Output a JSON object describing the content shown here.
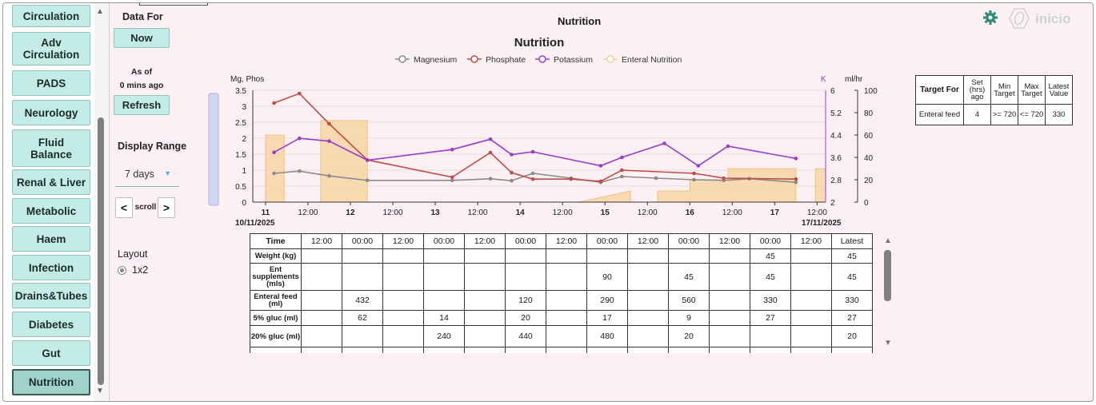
{
  "sidebar": {
    "items": [
      {
        "label": "Circulation"
      },
      {
        "label": "Adv Circulation"
      },
      {
        "label": "PADS"
      },
      {
        "label": "Neurology"
      },
      {
        "label": "Fluid Balance"
      },
      {
        "label": "Renal & Liver"
      },
      {
        "label": "Metabolic"
      },
      {
        "label": "Haem"
      },
      {
        "label": "Infection"
      },
      {
        "label": "Drains&Tubes"
      },
      {
        "label": "Diabetes"
      },
      {
        "label": "Gut"
      },
      {
        "label": "Nutrition"
      }
    ]
  },
  "controls": {
    "data_for_label": "Data For",
    "now_button": "Now",
    "as_of_label": "As of",
    "as_of_value": "0 mins ago",
    "refresh_button": "Refresh",
    "display_range_label": "Display Range",
    "display_range_value": "7 days",
    "scroll_prev": "<",
    "scroll_label": "scroll",
    "scroll_next": ">",
    "layout_label": "Layout",
    "layout_option": "1x2"
  },
  "header": {
    "page_title": "Nutrition",
    "logo_text": "inicio"
  },
  "colors": {
    "magnesium": "#8a8a8a",
    "phosphate": "#c24a4a",
    "potassium": "#9a3ad0",
    "enteral": "#f6d39b",
    "accent": "#2e8b7a"
  },
  "chart_data": {
    "type": "line",
    "title": "Nutrition",
    "legend": [
      "Magnesium",
      "Phosphate",
      "Potassium",
      "Enteral Nutrition"
    ],
    "axes": {
      "left_label": "Mg, Phos",
      "left_ticks": [
        "3.5",
        "3",
        "2.5",
        "2",
        "1.5",
        "1",
        "0.5",
        "0"
      ],
      "left_range": [
        0,
        3.5
      ],
      "right1_label": "K",
      "right1_ticks": [
        "6",
        "5.2",
        "4.4",
        "3.6",
        "2.8",
        "2"
      ],
      "right1_range": [
        2,
        6
      ],
      "right2_label": "ml/hr",
      "right2_ticks": [
        "100",
        "80",
        "60",
        "40",
        "20",
        "0"
      ],
      "right2_range": [
        0,
        100
      ]
    },
    "x_range": [
      11,
      17.5
    ],
    "x_ticks": [
      {
        "x": 11,
        "label": "11",
        "bold": true
      },
      {
        "x": 11.5,
        "label": "12:00",
        "bold": false
      },
      {
        "x": 12,
        "label": "12",
        "bold": true
      },
      {
        "x": 12.5,
        "label": "12:00",
        "bold": false
      },
      {
        "x": 13,
        "label": "13",
        "bold": true
      },
      {
        "x": 13.5,
        "label": "12:00",
        "bold": false
      },
      {
        "x": 14,
        "label": "14",
        "bold": true
      },
      {
        "x": 14.5,
        "label": "12:00",
        "bold": false
      },
      {
        "x": 15,
        "label": "15",
        "bold": true
      },
      {
        "x": 15.5,
        "label": "12:00",
        "bold": false
      },
      {
        "x": 16,
        "label": "16",
        "bold": true
      },
      {
        "x": 16.5,
        "label": "12:00",
        "bold": false
      },
      {
        "x": 17,
        "label": "17",
        "bold": true
      },
      {
        "x": 17.5,
        "label": "12:00",
        "bold": false
      }
    ],
    "start_date": "10/11/2025",
    "end_date": "17/11/2025",
    "series": [
      {
        "name": "Magnesium",
        "axis": "left",
        "x": [
          11.1,
          11.4,
          11.75,
          12.2,
          13.2,
          13.65,
          13.9,
          14.15,
          14.6,
          14.95,
          15.2,
          15.6,
          16.05,
          16.4,
          16.7,
          17.25
        ],
        "y": [
          0.9,
          0.97,
          0.82,
          0.68,
          0.68,
          0.73,
          0.67,
          0.9,
          0.75,
          0.62,
          0.8,
          0.75,
          0.7,
          0.68,
          0.73,
          0.62
        ]
      },
      {
        "name": "Phosphate",
        "axis": "left",
        "x": [
          11.1,
          11.4,
          11.75,
          12.2,
          13.2,
          13.65,
          13.9,
          14.15,
          14.6,
          14.95,
          15.2,
          16.05,
          16.4,
          17.25
        ],
        "y": [
          3.1,
          3.4,
          2.45,
          1.32,
          0.78,
          1.55,
          0.92,
          0.72,
          0.72,
          0.65,
          1.0,
          0.9,
          0.75,
          0.72
        ]
      },
      {
        "name": "Potassium",
        "axis": "right1",
        "x": [
          11.1,
          11.4,
          11.75,
          12.2,
          13.2,
          13.65,
          13.9,
          14.15,
          14.95,
          15.2,
          15.7,
          16.1,
          16.45,
          17.25
        ],
        "y": [
          3.78,
          4.28,
          4.18,
          3.5,
          3.88,
          4.25,
          3.7,
          3.8,
          3.3,
          3.6,
          4.1,
          3.3,
          4.0,
          3.56
        ]
      },
      {
        "name": "Enteral Nutrition",
        "axis": "right2",
        "type": "area",
        "x": [
          11.0,
          11.0,
          11.22,
          11.22,
          11.65,
          11.65,
          12.2,
          12.2,
          14.7,
          15.3,
          15.3,
          15.62,
          15.62,
          16.0,
          16.0,
          16.45,
          16.45,
          17.25,
          17.25,
          17.48,
          17.48,
          17.6
        ],
        "y": [
          0,
          60,
          60,
          0,
          0,
          73,
          73,
          0,
          0,
          10,
          0,
          0,
          10,
          10,
          20,
          20,
          30,
          30,
          0,
          0,
          30,
          30
        ]
      }
    ]
  },
  "data_table": {
    "time_header": "Time",
    "columns": [
      "12:00",
      "00:00",
      "12:00",
      "00:00",
      "12:00",
      "00:00",
      "12:00",
      "00:00",
      "12:00",
      "00:00",
      "12:00",
      "00:00",
      "12:00",
      "Latest"
    ],
    "rows": [
      {
        "label": "Weight (kg)",
        "values": [
          "",
          "",
          "",
          "",
          "",
          "",
          "",
          "",
          "",
          "",
          "",
          "45",
          "",
          "45"
        ]
      },
      {
        "label": "Ent supplements (mls)",
        "values": [
          "",
          "",
          "",
          "",
          "",
          "",
          "",
          "90",
          "",
          "45",
          "",
          "45",
          "",
          "45"
        ]
      },
      {
        "label": "Enteral feed (ml)",
        "values": [
          "",
          "432",
          "",
          "",
          "",
          "120",
          "",
          "290",
          "",
          "560",
          "",
          "330",
          "",
          "330"
        ]
      },
      {
        "label": "5% gluc (ml)",
        "values": [
          "",
          "62",
          "",
          "14",
          "",
          "20",
          "",
          "17",
          "",
          "9",
          "",
          "27",
          "",
          "27"
        ]
      },
      {
        "label": "20% gluc (ml)",
        "values": [
          "",
          "",
          "",
          "240",
          "",
          "440",
          "",
          "480",
          "",
          "20",
          "",
          "",
          "",
          "20"
        ]
      }
    ]
  },
  "target_table": {
    "headers": [
      "Target For",
      "Set (hrs) ago",
      "Min Target",
      "Max Target",
      "Latest Value"
    ],
    "rows": [
      {
        "values": [
          "Enteral feed",
          "4",
          ">= 720",
          "<= 720",
          "330"
        ]
      }
    ]
  }
}
